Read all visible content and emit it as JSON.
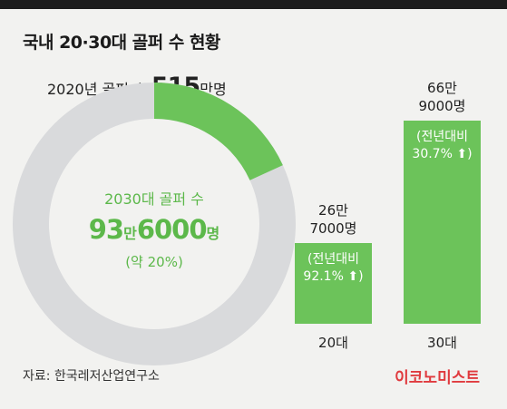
{
  "title": "국내 20·30대 골퍼 수 현황",
  "total_prefix": "2020년 골퍼 수 ",
  "total_value": "515",
  "total_unit": "만명",
  "center": {
    "line1": "2030대 골퍼 수",
    "value_a": "93",
    "unit_a": "만",
    "value_b": "6000",
    "unit_b": "명",
    "share": "(약 20%)"
  },
  "bars": [
    {
      "category": "20대",
      "value_line1": "26만",
      "value_line2": "7000명",
      "change_line1": "(전년대비",
      "change_line2": "92.1%"
    },
    {
      "category": "30대",
      "value_line1": "66만",
      "value_line2": "9000명",
      "change_line1": "(전년대비",
      "change_line2": "30.7%"
    }
  ],
  "source": "자료: 한국레저산업연구소",
  "brand": "이코노미스트",
  "colors": {
    "green": "#6cc35a",
    "ring": "#d9dadc",
    "accent": "#e03a3e"
  },
  "chart_data": [
    {
      "type": "pie",
      "title": "국내 20·30대 골퍼 수 현황",
      "slices": [
        {
          "label": "2030대 골퍼 수",
          "value": 936000
        },
        {
          "value": 4214000
        }
      ],
      "total": 5150000,
      "share_percent": 20
    },
    {
      "type": "bar",
      "categories": [
        "20대",
        "30대"
      ],
      "values": [
        267000,
        669000
      ],
      "yoy_change_percent": [
        92.1,
        30.7
      ]
    }
  ]
}
